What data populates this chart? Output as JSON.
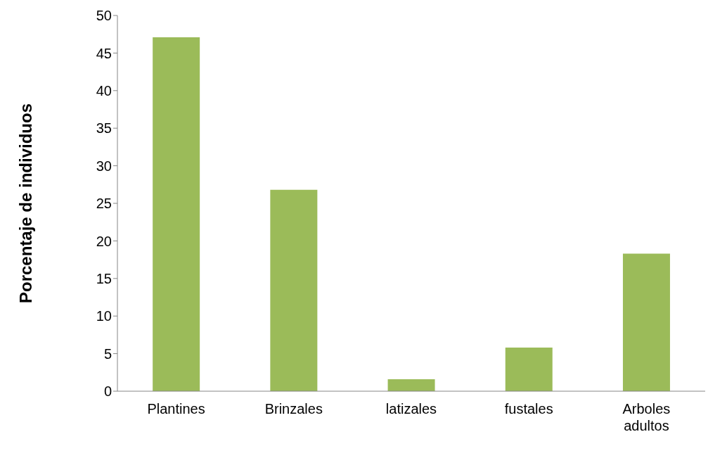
{
  "chart_data": {
    "type": "bar",
    "ylabel": "Porcentaje de individuos",
    "categories": [
      "Plantines",
      "Brinzales",
      "latizales",
      "fustales",
      "Arboles adultos"
    ],
    "values": [
      47.1,
      26.8,
      1.6,
      5.8,
      18.3
    ],
    "color": "#9bbb59",
    "ylim": [
      0,
      50
    ],
    "yticks": [
      0,
      5,
      10,
      15,
      20,
      25,
      30,
      35,
      40,
      45,
      50
    ],
    "grid": false,
    "legend": false
  }
}
